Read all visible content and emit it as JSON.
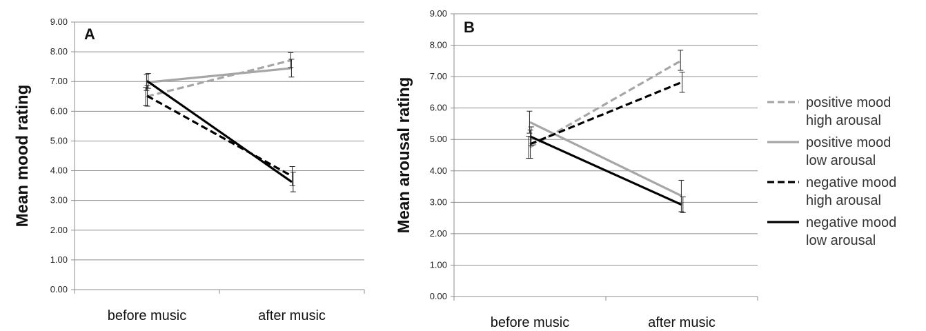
{
  "chart_data": [
    {
      "type": "line",
      "panel_label": "A",
      "ylabel": "Mean mood rating",
      "categories": [
        "before music",
        "after music"
      ],
      "ylim": [
        0,
        9
      ],
      "yticks": [
        "0.00",
        "1.00",
        "2.00",
        "3.00",
        "4.00",
        "5.00",
        "6.00",
        "7.00",
        "8.00",
        "9.00"
      ],
      "grid": true,
      "series": [
        {
          "name": "positive mood high arousal",
          "values": [
            6.5,
            7.72
          ],
          "err": [
            0.3,
            0.25
          ],
          "color": "#a6a6a6",
          "dash": true
        },
        {
          "name": "positive mood low arousal",
          "values": [
            6.97,
            7.45
          ],
          "err": [
            0.27,
            0.3
          ],
          "color": "#a6a6a6",
          "dash": false
        },
        {
          "name": "negative mood high arousal",
          "values": [
            6.52,
            3.82
          ],
          "err": [
            0.35,
            0.32
          ],
          "color": "#000000",
          "dash": true
        },
        {
          "name": "negative mood low arousal",
          "values": [
            7.02,
            3.62
          ],
          "err": [
            0.25,
            0.33
          ],
          "color": "#000000",
          "dash": false
        }
      ]
    },
    {
      "type": "line",
      "panel_label": "B",
      "ylabel": "Mean arousal rating",
      "categories": [
        "before music",
        "after music"
      ],
      "ylim": [
        0,
        9
      ],
      "yticks": [
        "0.00",
        "1.00",
        "2.00",
        "3.00",
        "4.00",
        "5.00",
        "6.00",
        "7.00",
        "8.00",
        "9.00"
      ],
      "grid": true,
      "legend_position": "right",
      "series": [
        {
          "name": "positive mood high arousal",
          "values": [
            4.75,
            7.52
          ],
          "err": [
            0.35,
            0.32
          ],
          "color": "#a6a6a6",
          "dash": true
        },
        {
          "name": "positive mood low arousal",
          "values": [
            5.55,
            3.2
          ],
          "err": [
            0.35,
            0.5
          ],
          "color": "#a6a6a6",
          "dash": false
        },
        {
          "name": "negative mood high arousal",
          "values": [
            4.85,
            6.82
          ],
          "err": [
            0.45,
            0.32
          ],
          "color": "#000000",
          "dash": true
        },
        {
          "name": "negative mood low arousal",
          "values": [
            5.1,
            2.92
          ],
          "err": [
            0.3,
            0.25
          ],
          "color": "#000000",
          "dash": false
        }
      ]
    }
  ],
  "legend": [
    {
      "line1": "positive mood",
      "line2": "high arousal",
      "color": "#a6a6a6",
      "dash": true
    },
    {
      "line1": "positive mood",
      "line2": "low arousal",
      "color": "#a6a6a6",
      "dash": false
    },
    {
      "line1": "negative mood",
      "line2": "high arousal",
      "color": "#000000",
      "dash": true
    },
    {
      "line1": "negative mood",
      "line2": "low arousal",
      "color": "#000000",
      "dash": false
    }
  ]
}
